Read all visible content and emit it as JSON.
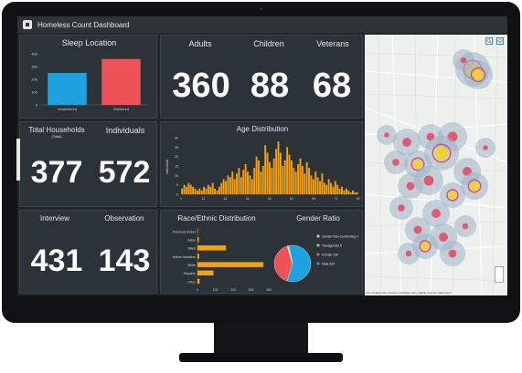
{
  "app": {
    "title": "Homeless Count Dashboard"
  },
  "sleep_location": {
    "title": "Sleep Location",
    "chart_data": {
      "type": "bar",
      "categories": [
        "Unsheltered",
        "Sheltered"
      ],
      "values": [
        250,
        360
      ],
      "colors": [
        "#1ea3e0",
        "#ef5358"
      ],
      "ylim": [
        0,
        400
      ],
      "yticks": [
        0,
        100,
        200,
        300,
        400
      ]
    }
  },
  "totals": {
    "adults_label": "Adults",
    "adults_value": "360",
    "children_label": "Children",
    "children_value": "88",
    "veterans_label": "Veterans",
    "veterans_value": "68"
  },
  "households": {
    "total_label": "Total Households",
    "total_sub": "(Total)",
    "total_value": "377",
    "individuals_label": "Individuals",
    "individuals_value": "572"
  },
  "age_distribution": {
    "title": "Age Distribution",
    "chart_data": {
      "type": "bar",
      "ylabel": "Individuals",
      "x": [
        1,
        2,
        3,
        4,
        5,
        6,
        7,
        8,
        9,
        10,
        11,
        12,
        13,
        14,
        15,
        16,
        17,
        18,
        19,
        20,
        21,
        22,
        23,
        24,
        25,
        26,
        27,
        28,
        29,
        30,
        31,
        32,
        33,
        34,
        35,
        36,
        37,
        38,
        39,
        40,
        41,
        42,
        43,
        44,
        45,
        46,
        47,
        48,
        49,
        50,
        51,
        52,
        53,
        54,
        55,
        56,
        57,
        58,
        59,
        60,
        61,
        62,
        63,
        64,
        65,
        66,
        67,
        68,
        69,
        70,
        71,
        72,
        73,
        74,
        75,
        76,
        77,
        78,
        79,
        80,
        81
      ],
      "values": [
        3,
        5,
        4,
        6,
        5,
        4,
        3,
        2,
        3,
        2,
        4,
        3,
        5,
        4,
        6,
        3,
        2,
        4,
        6,
        8,
        7,
        10,
        9,
        12,
        8,
        11,
        14,
        9,
        13,
        16,
        12,
        10,
        8,
        14,
        20,
        18,
        12,
        15,
        26,
        22,
        17,
        14,
        19,
        24,
        28,
        22,
        15,
        18,
        25,
        21,
        18,
        14,
        12,
        16,
        19,
        15,
        11,
        17,
        14,
        10,
        8,
        12,
        9,
        7,
        11,
        6,
        5,
        8,
        6,
        4,
        7,
        5,
        3,
        4,
        2,
        3,
        2,
        1,
        2,
        1,
        1
      ],
      "color": "#f5a30a",
      "ylim": [
        0,
        30
      ],
      "yticks": [
        0,
        5,
        10,
        15,
        20,
        25,
        30
      ],
      "xticks": [
        "1",
        "11",
        "21",
        "31",
        "41",
        "51",
        "61",
        "71",
        "81"
      ]
    }
  },
  "collection": {
    "interview_label": "Interview",
    "interview_value": "431",
    "observation_label": "Observation",
    "observation_value": "143"
  },
  "race": {
    "title": "Race/Ethnic Distribution",
    "chart_data": {
      "type": "bar",
      "orientation": "horizontal",
      "categories": [
        "American Indian",
        "Asian",
        "Black",
        "Native Hawaiian",
        "White",
        "Hispanic",
        "Other"
      ],
      "values": [
        2,
        8,
        160,
        10,
        370,
        90,
        12
      ],
      "color": "#f5a30a",
      "xlim": [
        0,
        400
      ],
      "xticks": [
        "0",
        "100",
        "200",
        "300",
        "400"
      ]
    }
  },
  "gender": {
    "title": "Gender Ratio",
    "chart_data": {
      "type": "pie",
      "categories": [
        "Male",
        "Female",
        "Gender Non-Conforming",
        "Transgender"
      ],
      "values": [
        330,
        230,
        4,
        5
      ],
      "colors": [
        "#1ea3e0",
        "#ef5358",
        "#c0c7cd",
        "#8fd14f"
      ],
      "legend": [
        "Male 330",
        "Female 230",
        "Gender Non-Conforming 4",
        "Transgender 5"
      ]
    }
  },
  "map": {
    "zoom_in_icon": "search-icon",
    "layers_icon": "layers-icon",
    "attribution": "City of Naperville, County of DuPage, Esri, HERE, Garmin, SafeGraph"
  }
}
